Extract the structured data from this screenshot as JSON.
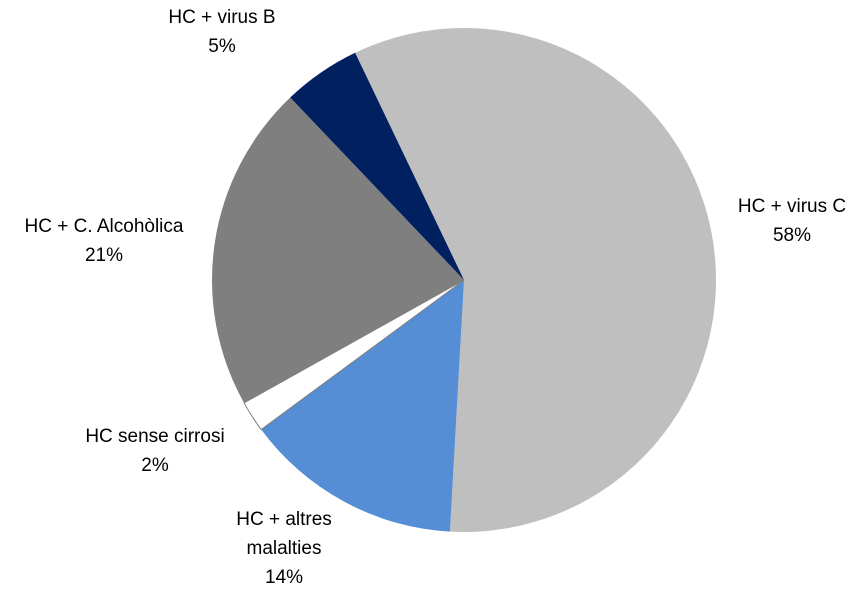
{
  "chart_data": {
    "type": "pie",
    "categories": [
      "HC + virus C",
      "HC + altres malalties",
      "HC sense cirrosi",
      "HC + C. Alcohòlica",
      "HC + virus B"
    ],
    "values": [
      58,
      14,
      2,
      21,
      5
    ],
    "value_labels": [
      "58%",
      "14%",
      "2%",
      "21%",
      "5%"
    ],
    "colors": [
      "#bfbfbf",
      "#558ed5",
      "#ffffff",
      "#7f7f7f",
      "#002060"
    ]
  }
}
